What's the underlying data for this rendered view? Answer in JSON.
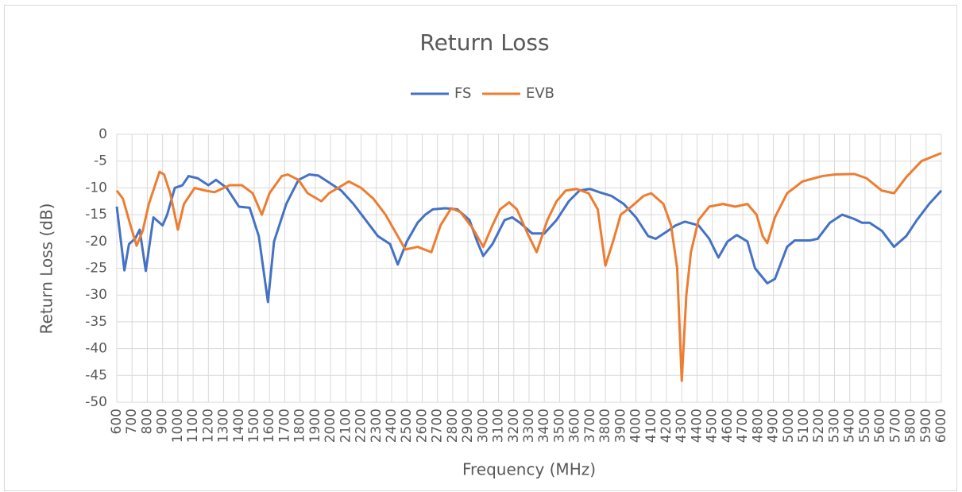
{
  "chart_data": {
    "type": "line",
    "title": "Return Loss",
    "xlabel": "Frequency (MHz)",
    "ylabel": "Return Loss (dB)",
    "xlim": [
      600,
      6000
    ],
    "ylim": [
      -50,
      0
    ],
    "xticks": [
      600,
      700,
      800,
      900,
      1000,
      1100,
      1200,
      1300,
      1400,
      1500,
      1600,
      1700,
      1800,
      1900,
      2000,
      2100,
      2200,
      2300,
      2400,
      2500,
      2600,
      2700,
      2800,
      2900,
      3000,
      3100,
      3200,
      3300,
      3400,
      3500,
      3600,
      3700,
      3800,
      3900,
      4000,
      4100,
      4200,
      4300,
      4400,
      4500,
      4600,
      4700,
      4800,
      4900,
      5000,
      5100,
      5200,
      5300,
      5400,
      5500,
      5600,
      5700,
      5800,
      5900,
      6000
    ],
    "yticks": [
      0,
      -5,
      -10,
      -15,
      -20,
      -25,
      -30,
      -35,
      -40,
      -45,
      -50
    ],
    "grid": true,
    "legend": "top",
    "series": [
      {
        "name": "FS",
        "color": "#4472c4",
        "x": [
          600,
          650,
          680,
          720,
          750,
          790,
          840,
          900,
          930,
          980,
          1030,
          1070,
          1130,
          1200,
          1250,
          1320,
          1400,
          1470,
          1530,
          1590,
          1630,
          1710,
          1790,
          1860,
          1920,
          1990,
          2070,
          2150,
          2230,
          2310,
          2390,
          2440,
          2500,
          2570,
          2620,
          2670,
          2750,
          2830,
          2910,
          2960,
          3000,
          3060,
          3140,
          3190,
          3240,
          3320,
          3400,
          3480,
          3560,
          3630,
          3700,
          3760,
          3840,
          3920,
          4000,
          4080,
          4130,
          4210,
          4260,
          4320,
          4410,
          4480,
          4540,
          4600,
          4660,
          4730,
          4780,
          4860,
          4910,
          4990,
          5040,
          5140,
          5190,
          5270,
          5350,
          5430,
          5480,
          5530,
          5610,
          5690,
          5770,
          5840,
          5920,
          6000
        ],
        "values": [
          -13.5,
          -25.4,
          -20.5,
          -19.5,
          -17.8,
          -25.5,
          -15.5,
          -17,
          -15,
          -10,
          -9.5,
          -7.8,
          -8.2,
          -9.5,
          -8.5,
          -10,
          -13.5,
          -13.7,
          -19,
          -31.3,
          -20,
          -13,
          -8.5,
          -7.5,
          -7.7,
          -9,
          -10.5,
          -13,
          -16,
          -19,
          -20.5,
          -24.3,
          -20,
          -16.5,
          -15,
          -14,
          -13.8,
          -14,
          -16,
          -20,
          -22.7,
          -20.5,
          -16,
          -15.5,
          -16.5,
          -18.5,
          -18.5,
          -16,
          -12.5,
          -10.5,
          -10.2,
          -10.8,
          -11.5,
          -13,
          -15.5,
          -19,
          -19.5,
          -18,
          -17,
          -16.3,
          -17,
          -19.5,
          -23,
          -20,
          -18.8,
          -20,
          -25,
          -27.8,
          -27,
          -21,
          -19.8,
          -19.8,
          -19.5,
          -16.5,
          -15,
          -15.8,
          -16.5,
          -16.5,
          -18,
          -21,
          -19,
          -16,
          -13,
          -10.5
        ]
      },
      {
        "name": "EVB",
        "color": "#ed7d31",
        "x": [
          600,
          640,
          690,
          730,
          770,
          810,
          880,
          910,
          950,
          1000,
          1040,
          1110,
          1180,
          1240,
          1340,
          1420,
          1490,
          1550,
          1600,
          1680,
          1720,
          1790,
          1850,
          1940,
          1990,
          2120,
          2200,
          2280,
          2360,
          2440,
          2490,
          2570,
          2660,
          2720,
          2790,
          2850,
          2930,
          3000,
          3060,
          3110,
          3170,
          3220,
          3290,
          3350,
          3420,
          3480,
          3540,
          3610,
          3690,
          3750,
          3800,
          3850,
          3900,
          3970,
          4050,
          4100,
          4180,
          4230,
          4270,
          4300,
          4330,
          4360,
          4410,
          4480,
          4570,
          4650,
          4730,
          4790,
          4830,
          4860,
          4910,
          4990,
          5090,
          5220,
          5300,
          5430,
          5510,
          5610,
          5690,
          5770,
          5870,
          6000
        ],
        "values": [
          -10.5,
          -12,
          -17,
          -20.8,
          -18,
          -13,
          -7,
          -7.5,
          -11,
          -17.8,
          -13,
          -10,
          -10.5,
          -10.8,
          -9.5,
          -9.5,
          -11,
          -15,
          -11,
          -7.8,
          -7.5,
          -8.5,
          -11,
          -12.5,
          -11,
          -8.8,
          -10,
          -12,
          -15,
          -19,
          -21.5,
          -21,
          -22,
          -17,
          -13.8,
          -14.5,
          -17.5,
          -21,
          -17,
          -14,
          -12.7,
          -14,
          -18.5,
          -22,
          -16,
          -12.5,
          -10.5,
          -10.2,
          -11,
          -14,
          -24.5,
          -20,
          -15,
          -13.5,
          -11.5,
          -11,
          -13,
          -17,
          -25,
          -46,
          -30,
          -22,
          -16,
          -13.5,
          -13,
          -13.5,
          -13,
          -15,
          -19,
          -20.3,
          -15.5,
          -11,
          -8.8,
          -7.8,
          -7.5,
          -7.4,
          -8.2,
          -10.5,
          -11,
          -8,
          -5,
          -3.5
        ]
      }
    ]
  }
}
